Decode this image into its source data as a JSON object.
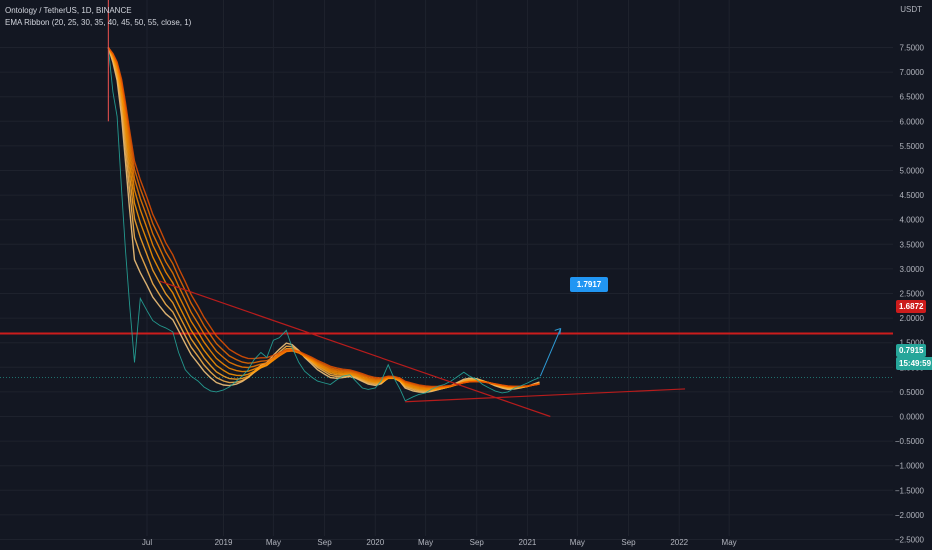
{
  "legend": {
    "title": "Ontology / TetherUS, 1D, BINANCE",
    "indicator": "EMA Ribbon (20, 25, 30, 35, 40, 45, 50, 55, close, 1)"
  },
  "price_axis": {
    "currency": "USDT",
    "current_price": "0.7915",
    "countdown": "15:49:59",
    "resistance_label": "1.6872"
  },
  "callout": {
    "target_label": "1.7917"
  },
  "colors": {
    "background": "#131722",
    "resistance": "#cc1c1c",
    "trendline": "#b71c1c",
    "current_line": "#26a69a",
    "callout": "#2196f3",
    "arrow": "#2e9bd6"
  },
  "chart_data": {
    "type": "line",
    "title": "Ontology / TetherUS, 1D, BINANCE",
    "ylim": [
      -2.7,
      7.6
    ],
    "yticks": [
      "7.5000",
      "7.0000",
      "6.5000",
      "6.0000",
      "5.5000",
      "5.0000",
      "4.5000",
      "4.0000",
      "3.5000",
      "3.0000",
      "2.5000",
      "2.0000",
      "1.5000",
      "1.0000",
      "0.5000",
      "0.0000",
      "−0.5000",
      "−1.0000",
      "−1.5000",
      "−2.0000",
      "−2.5000"
    ],
    "ytick_values": [
      7.5,
      7.0,
      6.5,
      6.0,
      5.5,
      5.0,
      4.5,
      4.0,
      3.5,
      3.0,
      2.5,
      2.0,
      1.5,
      1.0,
      0.5,
      0.0,
      -0.5,
      -1.0,
      -1.5,
      -2.0,
      -2.5
    ],
    "xticks": [
      "Jul",
      "2019",
      "May",
      "Sep",
      "2020",
      "May",
      "Sep",
      "2021",
      "May",
      "Sep",
      "2022",
      "May"
    ],
    "xtick_dates": [
      "2018-07-01",
      "2019-01-01",
      "2019-05-01",
      "2019-09-01",
      "2020-01-01",
      "2020-05-01",
      "2020-09-01",
      "2021-01-01",
      "2021-05-01",
      "2021-09-01",
      "2022-01-01",
      "2022-05-01"
    ],
    "price_series": {
      "name": "Ontology / TetherUS",
      "x": [
        "2018-03-30",
        "2018-04-10",
        "2018-04-20",
        "2018-05-01",
        "2018-05-10",
        "2018-05-20",
        "2018-06-01",
        "2018-06-15",
        "2018-07-01",
        "2018-07-15",
        "2018-08-01",
        "2018-08-15",
        "2018-09-01",
        "2018-09-15",
        "2018-10-01",
        "2018-10-15",
        "2018-11-01",
        "2018-11-15",
        "2018-12-01",
        "2018-12-15",
        "2019-01-01",
        "2019-01-15",
        "2019-02-01",
        "2019-02-15",
        "2019-03-01",
        "2019-03-15",
        "2019-04-01",
        "2019-04-15",
        "2019-05-01",
        "2019-05-15",
        "2019-06-01",
        "2019-06-15",
        "2019-07-01",
        "2019-07-15",
        "2019-08-01",
        "2019-08-15",
        "2019-09-01",
        "2019-09-15",
        "2019-10-01",
        "2019-10-15",
        "2019-11-01",
        "2019-11-15",
        "2019-12-01",
        "2019-12-15",
        "2020-01-01",
        "2020-01-15",
        "2020-02-01",
        "2020-02-15",
        "2020-03-01",
        "2020-03-13",
        "2020-04-01",
        "2020-04-15",
        "2020-05-01",
        "2020-05-15",
        "2020-06-01",
        "2020-06-15",
        "2020-07-01",
        "2020-07-15",
        "2020-08-01",
        "2020-08-15",
        "2020-09-01",
        "2020-09-15",
        "2020-10-01",
        "2020-10-15",
        "2020-11-01",
        "2020-11-15",
        "2020-12-01",
        "2020-12-15",
        "2021-01-01",
        "2021-01-15",
        "2021-01-30"
      ],
      "y": [
        7.5,
        6.6,
        6.1,
        4.6,
        3.4,
        2.3,
        1.1,
        2.4,
        2.15,
        1.95,
        1.85,
        1.8,
        1.72,
        1.3,
        0.95,
        0.82,
        0.72,
        0.6,
        0.52,
        0.5,
        0.54,
        0.6,
        0.72,
        0.82,
        0.95,
        1.15,
        1.3,
        1.2,
        1.55,
        1.6,
        1.75,
        1.4,
        1.1,
        0.92,
        0.8,
        0.72,
        0.68,
        0.65,
        0.75,
        0.82,
        0.85,
        0.72,
        0.58,
        0.55,
        0.58,
        0.72,
        1.05,
        0.78,
        0.55,
        0.32,
        0.4,
        0.45,
        0.48,
        0.55,
        0.62,
        0.65,
        0.72,
        0.8,
        0.9,
        0.82,
        0.75,
        0.65,
        0.58,
        0.52,
        0.48,
        0.5,
        0.58,
        0.62,
        0.68,
        0.74,
        0.79
      ]
    },
    "ema_ribbon": {
      "periods": [
        20,
        25,
        30,
        35,
        40,
        45,
        50,
        55
      ],
      "source": "close"
    },
    "current_price": 0.7915,
    "resistance_level": 1.6872,
    "target_price": 1.7917
  }
}
